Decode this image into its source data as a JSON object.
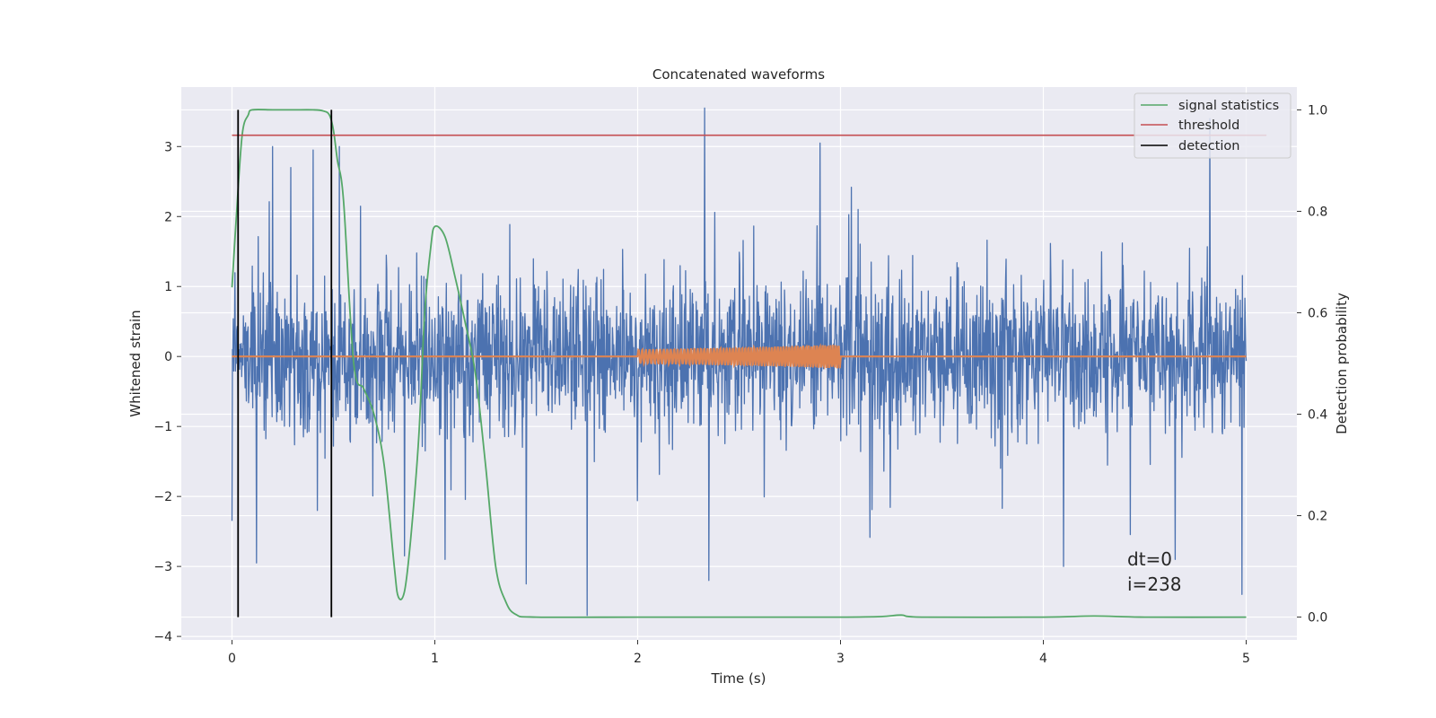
{
  "chart_data": {
    "type": "line",
    "title": "Concatenated waveforms",
    "xlabel": "Time (s)",
    "ylabel": "Whitened strain",
    "y2label": "Detection probability",
    "xlim": [
      -0.25,
      5.25
    ],
    "ylim": [
      -4.05,
      3.85
    ],
    "y2lim": [
      -0.045,
      1.045
    ],
    "xticks": [
      0,
      1,
      2,
      3,
      4,
      5
    ],
    "yticks": [
      -4,
      -3,
      -2,
      -1,
      0,
      1,
      2,
      3
    ],
    "y2ticks": [
      0.0,
      0.2,
      0.4,
      0.6,
      0.8,
      1.0
    ],
    "grid": true,
    "style": "seaborn-darkgrid",
    "legend_position": "top-right",
    "annotation": [
      "dt=0",
      "i=238"
    ],
    "colors": {
      "background": "#eaeaf2",
      "grid": "#ffffff",
      "strain": "#4c72b0",
      "injection": "#dd8452",
      "signal_statistics": "#55a868",
      "threshold": "#c44e52",
      "detection": "#000000"
    },
    "series": [
      {
        "name": "",
        "axis": "left",
        "description_color": "strain",
        "kind": "noise",
        "x_range": [
          0,
          5
        ],
        "typical_envelope": [
          -1.3,
          1.3
        ],
        "peaks": [
          {
            "x": 0.0,
            "y": -2.35
          },
          {
            "x": 0.12,
            "y": -2.95
          },
          {
            "x": 0.2,
            "y": 3.0
          },
          {
            "x": 0.29,
            "y": 2.7
          },
          {
            "x": 0.42,
            "y": -2.2
          },
          {
            "x": 0.4,
            "y": 2.95
          },
          {
            "x": 0.53,
            "y": 3.0
          },
          {
            "x": 0.85,
            "y": -2.85
          },
          {
            "x": 1.05,
            "y": -2.9
          },
          {
            "x": 1.75,
            "y": -3.7
          },
          {
            "x": 1.45,
            "y": -3.25
          },
          {
            "x": 2.33,
            "y": 3.55
          },
          {
            "x": 2.35,
            "y": -3.2
          },
          {
            "x": 2.9,
            "y": 3.05
          },
          {
            "x": 4.1,
            "y": -3.0
          },
          {
            "x": 4.65,
            "y": -2.9
          },
          {
            "x": 4.82,
            "y": 3.4
          },
          {
            "x": 4.98,
            "y": -3.4
          }
        ]
      },
      {
        "name": "",
        "axis": "left",
        "description_color": "injection",
        "kind": "chirp",
        "x": [
          0,
          2,
          2.5,
          3,
          5
        ],
        "amplitude": [
          0,
          0.1,
          0.13,
          0.17,
          0
        ]
      },
      {
        "name": "signal statistics",
        "axis": "right",
        "x": [
          0.0,
          0.02,
          0.05,
          0.08,
          0.1,
          0.2,
          0.3,
          0.4,
          0.45,
          0.48,
          0.5,
          0.52,
          0.55,
          0.6,
          0.65,
          0.7,
          0.75,
          0.8,
          0.82,
          0.85,
          0.88,
          0.92,
          0.95,
          0.98,
          1.0,
          1.05,
          1.1,
          1.15,
          1.2,
          1.25,
          1.3,
          1.35,
          1.4,
          1.5,
          2.0,
          2.5,
          3.0,
          3.2,
          3.3,
          3.4,
          4.0,
          4.25,
          4.5,
          5.0
        ],
        "y": [
          0.65,
          0.78,
          0.95,
          0.99,
          1.0,
          1.0,
          1.0,
          1.0,
          0.998,
          0.99,
          0.96,
          0.9,
          0.82,
          0.5,
          0.45,
          0.4,
          0.3,
          0.1,
          0.04,
          0.05,
          0.15,
          0.35,
          0.6,
          0.73,
          0.77,
          0.75,
          0.67,
          0.58,
          0.48,
          0.3,
          0.1,
          0.03,
          0.005,
          0.0,
          0.0,
          0.0,
          0.0,
          0.001,
          0.004,
          0.0,
          0.0,
          0.002,
          0.0,
          0.0
        ]
      },
      {
        "name": "threshold",
        "axis": "right",
        "x": [
          0,
          5.1
        ],
        "y": [
          0.95,
          0.95
        ]
      },
      {
        "name": "detection",
        "axis": "right",
        "kind": "vlines",
        "x": [
          0.03,
          0.49
        ],
        "y_range": [
          0.0,
          1.0
        ]
      }
    ]
  }
}
